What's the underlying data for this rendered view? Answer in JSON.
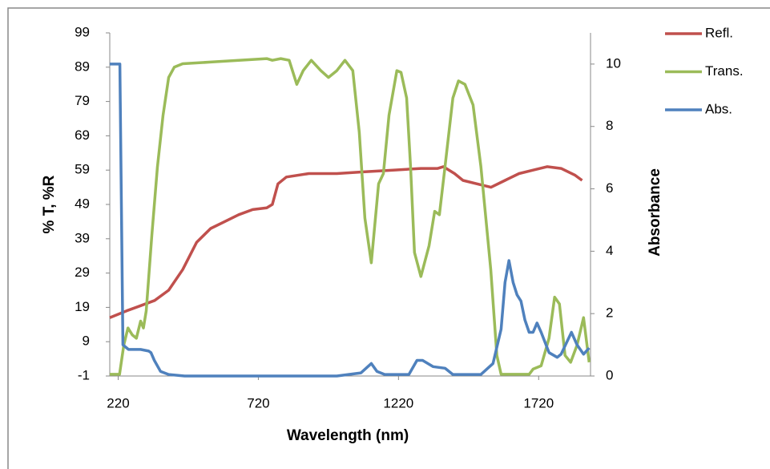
{
  "chart_data": {
    "type": "line",
    "x_label": "Wavelength (nm)",
    "y_label": "% T, %R",
    "y2_label": "Absorbance",
    "xlim": [
      190,
      1905
    ],
    "xticks": [
      220,
      720,
      1220,
      1720
    ],
    "ylim": [
      -1,
      99
    ],
    "yticks": [
      -1,
      9,
      19,
      29,
      39,
      49,
      59,
      69,
      79,
      89,
      99
    ],
    "y2lim": [
      0,
      11
    ],
    "y2ticks": [
      0,
      2,
      4,
      6,
      8,
      10
    ],
    "legend": "right",
    "series": [
      {
        "name": "Refl.",
        "color": "#c0504d",
        "x": [
          190,
          250,
          300,
          350,
          400,
          450,
          500,
          550,
          600,
          650,
          700,
          750,
          770,
          790,
          820,
          900,
          1000,
          1100,
          1200,
          1300,
          1360,
          1380,
          1420,
          1450,
          1500,
          1550,
          1600,
          1650,
          1700,
          1750,
          1800,
          1850,
          1875
        ],
        "values": [
          16,
          18,
          19.5,
          21,
          24,
          30,
          38,
          42,
          44,
          46,
          47.5,
          48,
          49,
          55,
          57,
          58,
          58,
          58.5,
          59,
          59.5,
          59.5,
          60,
          58,
          56,
          55,
          54,
          56,
          58,
          59,
          60,
          59.5,
          57.5,
          56
        ]
      },
      {
        "name": "Trans.",
        "color": "#9bbb59",
        "x": [
          190,
          225,
          240,
          255,
          270,
          285,
          300,
          310,
          320,
          340,
          360,
          380,
          400,
          420,
          450,
          550,
          650,
          750,
          770,
          800,
          830,
          857,
          880,
          909,
          943,
          970,
          1000,
          1029,
          1057,
          1080,
          1100,
          1123,
          1149,
          1166,
          1186,
          1214,
          1229,
          1249,
          1263,
          1277,
          1300,
          1329,
          1349,
          1366,
          1386,
          1414,
          1434,
          1457,
          1486,
          1514,
          1549,
          1571,
          1586,
          1686,
          1700,
          1729,
          1757,
          1777,
          1794,
          1814,
          1834,
          1857,
          1880,
          1900
        ],
        "values": [
          -0.5,
          -0.5,
          8,
          13,
          11,
          10,
          15,
          13,
          18,
          40,
          60,
          75,
          86,
          89,
          90,
          90.5,
          91,
          91.5,
          91,
          91.5,
          91,
          84,
          88,
          91,
          88,
          86,
          88,
          91,
          88,
          70,
          45,
          32,
          55,
          58,
          75,
          88,
          87.5,
          80,
          60,
          35,
          28,
          37,
          47,
          46,
          60,
          80,
          85,
          84,
          78,
          60,
          30,
          5,
          -0.5,
          -0.5,
          1,
          2,
          10,
          22,
          20,
          5,
          3,
          8,
          16,
          3
        ]
      },
      {
        "name": "Abs.",
        "color": "#4f81bd",
        "axis": "y2",
        "x": [
          190,
          226,
          237,
          257,
          300,
          329,
          337,
          349,
          371,
          400,
          457,
          1000,
          1086,
          1123,
          1143,
          1171,
          1257,
          1286,
          1306,
          1343,
          1386,
          1414,
          1514,
          1557,
          1586,
          1600,
          1614,
          1629,
          1643,
          1657,
          1671,
          1686,
          1700,
          1714,
          1729,
          1757,
          1786,
          1800,
          1837,
          1857,
          1880,
          1900
        ],
        "values": [
          10,
          10,
          1,
          0.85,
          0.85,
          0.8,
          0.75,
          0.5,
          0.15,
          0.05,
          0,
          0,
          0.1,
          0.4,
          0.15,
          0.05,
          0.05,
          0.5,
          0.5,
          0.3,
          0.25,
          0.05,
          0.05,
          0.4,
          1.5,
          3,
          3.7,
          3,
          2.6,
          2.4,
          1.8,
          1.4,
          1.4,
          1.7,
          1.4,
          0.75,
          0.6,
          0.7,
          1.4,
          1,
          0.7,
          0.9
        ]
      }
    ]
  }
}
